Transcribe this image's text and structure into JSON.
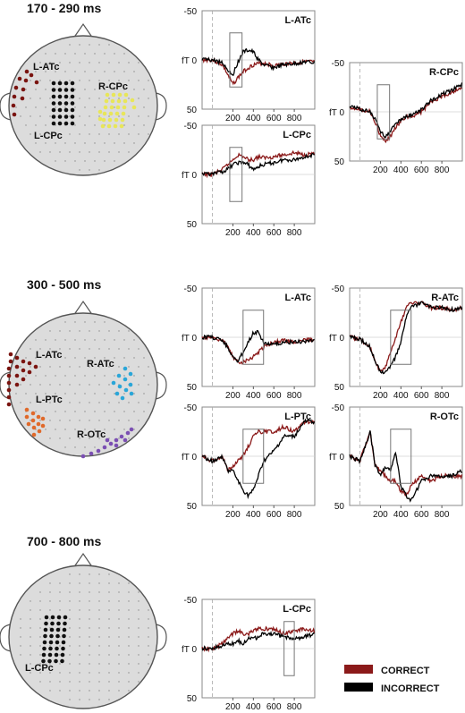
{
  "colors": {
    "correct": "#8b1a1a",
    "incorrect": "#000000",
    "head_fill": "#dcdcdc",
    "head_stroke": "#555555",
    "frame": "#888888",
    "L-ATc": "#7a1410",
    "R-CPc": "#e8e65a",
    "L-CPc": "#111111",
    "R-ATc": "#2aa6d8",
    "L-PTc": "#e0692a",
    "R-OTc": "#7b4fb3"
  },
  "legend": [
    {
      "label": "CORRECT",
      "color": "#8b1a1a"
    },
    {
      "label": "INCORRECT",
      "color": "#000000"
    }
  ],
  "windows": [
    {
      "title": "170 - 290 ms",
      "head_labels": [
        "L-ATc",
        "R-CPc",
        "L-CPc"
      ],
      "panels": [
        {
          "label": "L-ATc",
          "y_labels": [
            "-50",
            "fT 0",
            "50"
          ],
          "x_ticks": [
            "200",
            "400",
            "600",
            "800"
          ],
          "box_ms": [
            170,
            290
          ]
        },
        {
          "label": "L-CPc",
          "y_labels": [
            "-50",
            "fT 0",
            "50"
          ],
          "x_ticks": [
            "200",
            "400",
            "600",
            "800"
          ],
          "box_ms": [
            170,
            290
          ]
        },
        {
          "label": "R-CPc",
          "y_labels": [
            "-50",
            "fT 0",
            "50"
          ],
          "x_ticks": [
            "200",
            "400",
            "600",
            "800"
          ],
          "box_ms": [
            170,
            290
          ]
        }
      ]
    },
    {
      "title": "300 - 500 ms",
      "head_labels": [
        "L-ATc",
        "R-ATc",
        "L-PTc",
        "R-OTc"
      ],
      "panels": [
        {
          "label": "L-ATc",
          "y_labels": [
            "-50",
            "fT 0",
            "50"
          ],
          "x_ticks": [
            "200",
            "400",
            "600",
            "800"
          ],
          "box_ms": [
            300,
            500
          ]
        },
        {
          "label": "R-ATc",
          "y_labels": [
            "-50",
            "fT 0",
            "50"
          ],
          "x_ticks": [
            "200",
            "400",
            "600",
            "800"
          ],
          "box_ms": [
            300,
            500
          ]
        },
        {
          "label": "L-PTc",
          "y_labels": [
            "-50",
            "fT 0",
            "50"
          ],
          "x_ticks": [
            "200",
            "400",
            "600",
            "800"
          ],
          "box_ms": [
            300,
            500
          ]
        },
        {
          "label": "R-OTc",
          "y_labels": [
            "-50",
            "fT 0",
            "50"
          ],
          "x_ticks": [
            "200",
            "400",
            "600",
            "800"
          ],
          "box_ms": [
            300,
            500
          ]
        }
      ]
    },
    {
      "title": "700 - 800 ms",
      "head_labels": [
        "L-CPc"
      ],
      "panels": [
        {
          "label": "L-CPc",
          "y_labels": [
            "-50",
            "fT 0",
            "50"
          ],
          "x_ticks": [
            "200",
            "400",
            "600",
            "800"
          ],
          "box_ms": [
            700,
            800
          ]
        }
      ]
    }
  ],
  "chart_data": [
    {
      "type": "line",
      "title": "L-ATc",
      "ylim": [
        50,
        -50
      ],
      "xlim": [
        -100,
        1000
      ],
      "x": [
        -100,
        0,
        100,
        150,
        200,
        250,
        300,
        350,
        400,
        450,
        500,
        600,
        700,
        800,
        900,
        1000
      ],
      "series": [
        {
          "name": "CORRECT",
          "values": [
            0,
            0,
            5,
            15,
            25,
            18,
            12,
            8,
            5,
            4,
            3,
            6,
            4,
            3,
            2,
            2
          ]
        },
        {
          "name": "INCORRECT",
          "values": [
            0,
            0,
            3,
            10,
            15,
            2,
            -8,
            -10,
            -8,
            0,
            5,
            8,
            5,
            4,
            2,
            3
          ]
        }
      ]
    },
    {
      "type": "line",
      "title": "L-CPc",
      "ylim": [
        50,
        -50
      ],
      "xlim": [
        -100,
        1000
      ],
      "x": [
        -100,
        0,
        100,
        150,
        200,
        250,
        300,
        350,
        400,
        450,
        500,
        600,
        700,
        800,
        900,
        1000
      ],
      "series": [
        {
          "name": "CORRECT",
          "values": [
            0,
            0,
            -5,
            -10,
            -15,
            -20,
            -18,
            -15,
            -15,
            -18,
            -17,
            -18,
            -20,
            -22,
            -20,
            -22
          ]
        },
        {
          "name": "INCORRECT",
          "values": [
            0,
            0,
            -3,
            -5,
            -10,
            -12,
            -12,
            -10,
            -5,
            -8,
            -10,
            -12,
            -15,
            -15,
            -18,
            -20
          ]
        }
      ]
    },
    {
      "type": "line",
      "title": "R-CPc",
      "ylim": [
        50,
        -50
      ],
      "xlim": [
        -100,
        1000
      ],
      "x": [
        -100,
        0,
        100,
        150,
        200,
        250,
        300,
        350,
        400,
        450,
        500,
        600,
        700,
        800,
        900,
        1000
      ],
      "series": [
        {
          "name": "CORRECT",
          "values": [
            -5,
            -3,
            0,
            10,
            25,
            30,
            25,
            15,
            10,
            5,
            5,
            0,
            -10,
            -15,
            -20,
            -25
          ]
        },
        {
          "name": "INCORRECT",
          "values": [
            -5,
            -3,
            0,
            8,
            20,
            25,
            20,
            12,
            8,
            5,
            3,
            -2,
            -12,
            -18,
            -22,
            -28
          ]
        }
      ]
    },
    {
      "type": "line",
      "title": "L-ATc",
      "ylim": [
        50,
        -50
      ],
      "xlim": [
        -100,
        1000
      ],
      "x": [
        -100,
        0,
        100,
        150,
        200,
        250,
        300,
        350,
        400,
        450,
        500,
        600,
        700,
        800,
        900,
        1000
      ],
      "series": [
        {
          "name": "CORRECT",
          "values": [
            0,
            0,
            3,
            10,
            20,
            25,
            25,
            22,
            20,
            15,
            10,
            5,
            3,
            5,
            3,
            2
          ]
        },
        {
          "name": "INCORRECT",
          "values": [
            0,
            0,
            3,
            10,
            20,
            25,
            15,
            5,
            -5,
            -5,
            5,
            8,
            5,
            5,
            4,
            2
          ]
        }
      ]
    },
    {
      "type": "line",
      "title": "R-ATc",
      "ylim": [
        50,
        -50
      ],
      "xlim": [
        -100,
        1000
      ],
      "x": [
        -100,
        0,
        100,
        150,
        200,
        250,
        300,
        350,
        400,
        450,
        500,
        600,
        700,
        800,
        900,
        1000
      ],
      "series": [
        {
          "name": "CORRECT",
          "values": [
            0,
            2,
            10,
            25,
            35,
            30,
            15,
            0,
            -15,
            -30,
            -35,
            -35,
            -30,
            -30,
            -28,
            -30
          ]
        },
        {
          "name": "INCORRECT",
          "values": [
            0,
            2,
            10,
            25,
            35,
            35,
            30,
            20,
            5,
            -20,
            -30,
            -35,
            -30,
            -30,
            -28,
            -30
          ]
        }
      ]
    },
    {
      "type": "line",
      "title": "L-PTc",
      "ylim": [
        50,
        -50
      ],
      "xlim": [
        -100,
        1000
      ],
      "x": [
        -100,
        0,
        100,
        150,
        200,
        250,
        300,
        350,
        400,
        450,
        500,
        600,
        700,
        800,
        900,
        1000
      ],
      "series": [
        {
          "name": "CORRECT",
          "values": [
            0,
            5,
            0,
            15,
            10,
            5,
            0,
            -10,
            -20,
            -25,
            -25,
            -25,
            -30,
            -25,
            -35,
            -35
          ]
        },
        {
          "name": "INCORRECT",
          "values": [
            0,
            5,
            0,
            15,
            15,
            25,
            35,
            40,
            35,
            20,
            5,
            -5,
            -20,
            -20,
            -35,
            -35
          ]
        }
      ]
    },
    {
      "type": "line",
      "title": "R-OTc",
      "ylim": [
        50,
        -50
      ],
      "xlim": [
        -100,
        1000
      ],
      "x": [
        -100,
        0,
        100,
        150,
        200,
        250,
        300,
        350,
        400,
        450,
        500,
        600,
        700,
        800,
        900,
        1000
      ],
      "series": [
        {
          "name": "CORRECT",
          "values": [
            0,
            5,
            -25,
            10,
            15,
            20,
            25,
            25,
            35,
            40,
            30,
            20,
            25,
            20,
            20,
            20
          ]
        },
        {
          "name": "INCORRECT",
          "values": [
            0,
            5,
            -25,
            10,
            20,
            10,
            15,
            -5,
            30,
            40,
            45,
            25,
            20,
            20,
            20,
            15
          ]
        }
      ]
    },
    {
      "type": "line",
      "title": "L-CPc",
      "ylim": [
        50,
        -50
      ],
      "xlim": [
        -100,
        1000
      ],
      "x": [
        -100,
        0,
        100,
        150,
        200,
        250,
        300,
        350,
        400,
        450,
        500,
        600,
        700,
        800,
        900,
        1000
      ],
      "series": [
        {
          "name": "CORRECT",
          "values": [
            0,
            0,
            -5,
            -10,
            -15,
            -18,
            -15,
            -15,
            -18,
            -20,
            -20,
            -20,
            -15,
            -18,
            -20,
            -18
          ]
        },
        {
          "name": "INCORRECT",
          "values": [
            0,
            0,
            -3,
            -5,
            -5,
            -8,
            -5,
            -10,
            -10,
            -12,
            -15,
            -15,
            -12,
            -10,
            -12,
            -15
          ]
        }
      ]
    }
  ]
}
